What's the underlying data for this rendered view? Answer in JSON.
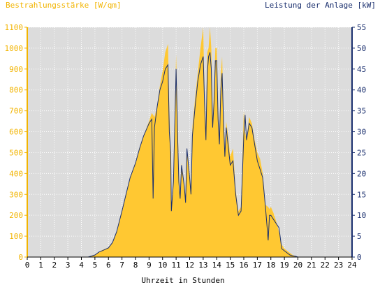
{
  "chart_data": {
    "type": "area",
    "title_left": "Bestrahlungsstärke [W/qm]",
    "title_right": "Leistung der Anlage [kW]",
    "xlabel": "Uhrzeit in Stunden",
    "xlim": [
      0,
      24
    ],
    "ylim_left": [
      0,
      1100
    ],
    "ylim_right": [
      0,
      55
    ],
    "x_ticks": [
      "0",
      "1",
      "2",
      "3",
      "4",
      "5",
      "6",
      "7",
      "8",
      "9",
      "10",
      "11",
      "12",
      "13",
      "14",
      "15",
      "16",
      "17",
      "18",
      "19",
      "20",
      "21",
      "22",
      "23",
      "24"
    ],
    "y_left_ticks": [
      "0",
      "100",
      "200",
      "300",
      "400",
      "500",
      "600",
      "700",
      "800",
      "900",
      "1000",
      "1100"
    ],
    "y_right_ticks": [
      "0",
      "5",
      "10",
      "15",
      "20",
      "25",
      "30",
      "35",
      "40",
      "45",
      "50",
      "55"
    ],
    "grid": true,
    "colors": {
      "plot_background": "#dcdcdc",
      "grid": "#ffffff",
      "irradiance_fill": "#ffc832",
      "power_line": "#1a2f6e",
      "left_axis_text": "#f2b400",
      "right_axis_text": "#1a2f6e",
      "x_axis_text": "#000000"
    },
    "series": [
      {
        "axis": "left",
        "style": "area",
        "x": [
          0,
          4.5,
          5.0,
          5.3,
          5.6,
          6.0,
          6.3,
          6.6,
          7.0,
          7.3,
          7.6,
          8.0,
          8.3,
          8.6,
          9.0,
          9.2,
          9.4,
          9.6,
          9.8,
          10.0,
          10.2,
          10.4,
          10.5,
          10.6,
          10.65,
          10.8,
          11.0,
          11.1,
          11.2,
          11.3,
          11.4,
          11.6,
          11.7,
          11.8,
          12.0,
          12.1,
          12.2,
          12.4,
          12.6,
          12.8,
          13.0,
          13.1,
          13.2,
          13.3,
          13.4,
          13.5,
          13.6,
          13.7,
          13.8,
          13.9,
          14.0,
          14.1,
          14.2,
          14.3,
          14.4,
          14.5,
          14.6,
          14.7,
          14.8,
          15.0,
          15.2,
          15.4,
          15.6,
          15.8,
          16.0,
          16.1,
          16.2,
          16.4,
          16.6,
          16.8,
          17.0,
          17.2,
          17.4,
          17.6,
          17.8,
          17.9,
          18.0,
          18.2,
          18.4,
          18.6,
          18.8,
          19.0,
          19.2,
          19.4,
          19.6,
          19.8,
          20.0,
          20.2,
          20.5,
          21,
          24
        ],
        "values": [
          0,
          0,
          10,
          25,
          35,
          45,
          70,
          120,
          220,
          300,
          380,
          450,
          520,
          580,
          650,
          690,
          670,
          720,
          820,
          890,
          980,
          1020,
          700,
          500,
          230,
          380,
          970,
          700,
          400,
          300,
          450,
          350,
          280,
          520,
          380,
          330,
          620,
          760,
          880,
          1000,
          1100,
          780,
          600,
          980,
          1000,
          1100,
          1000,
          650,
          800,
          1000,
          1000,
          720,
          580,
          880,
          960,
          700,
          500,
          650,
          600,
          480,
          520,
          320,
          220,
          240,
          700,
          600,
          560,
          670,
          640,
          560,
          500,
          470,
          400,
          250,
          240,
          230,
          240,
          210,
          170,
          120,
          60,
          40,
          30,
          20,
          10,
          5,
          0,
          0,
          0,
          0,
          0
        ],
        "name": ""
      },
      {
        "axis": "right",
        "style": "line",
        "x": [
          0,
          4.5,
          5.0,
          5.3,
          5.6,
          6.0,
          6.3,
          6.6,
          7.0,
          7.3,
          7.6,
          8.0,
          8.3,
          8.6,
          9.0,
          9.2,
          9.3,
          9.4,
          9.6,
          9.8,
          10.0,
          10.2,
          10.4,
          10.5,
          10.6,
          10.65,
          10.8,
          11.0,
          11.1,
          11.2,
          11.3,
          11.4,
          11.6,
          11.7,
          11.8,
          12.0,
          12.1,
          12.2,
          12.4,
          12.6,
          12.8,
          13.0,
          13.1,
          13.2,
          13.3,
          13.4,
          13.5,
          13.6,
          13.7,
          13.8,
          13.9,
          14.0,
          14.1,
          14.2,
          14.3,
          14.4,
          14.5,
          14.6,
          14.7,
          14.8,
          15.0,
          15.2,
          15.4,
          15.6,
          15.8,
          16.0,
          16.1,
          16.2,
          16.4,
          16.6,
          16.8,
          17.0,
          17.2,
          17.4,
          17.6,
          17.8,
          17.9,
          18.0,
          18.2,
          18.4,
          18.6,
          18.8,
          19.0,
          19.2,
          19.4,
          19.6,
          19.8,
          20.0,
          20.2,
          20.5,
          21,
          24
        ],
        "values": [
          0,
          0,
          0.5,
          1.2,
          1.6,
          2.2,
          3.5,
          6,
          11,
          15,
          19,
          22.5,
          26,
          29,
          32,
          33,
          14,
          31,
          36,
          40,
          42,
          45,
          46,
          30,
          25,
          11,
          18,
          45,
          30,
          18,
          14,
          22,
          17,
          13,
          26,
          19,
          15,
          29,
          36,
          42,
          46,
          48,
          37,
          28,
          44,
          48,
          49,
          45,
          31,
          37,
          47,
          47,
          33,
          27,
          40,
          44,
          33,
          24,
          31,
          28,
          22,
          23,
          15,
          10,
          11,
          29,
          34,
          28,
          32,
          31,
          27,
          23,
          21,
          19,
          12,
          4,
          10,
          10,
          9,
          8,
          7,
          2,
          1.5,
          1,
          0.5,
          0.3,
          0.2,
          0,
          0,
          0,
          0,
          0
        ],
        "name": ""
      }
    ]
  }
}
